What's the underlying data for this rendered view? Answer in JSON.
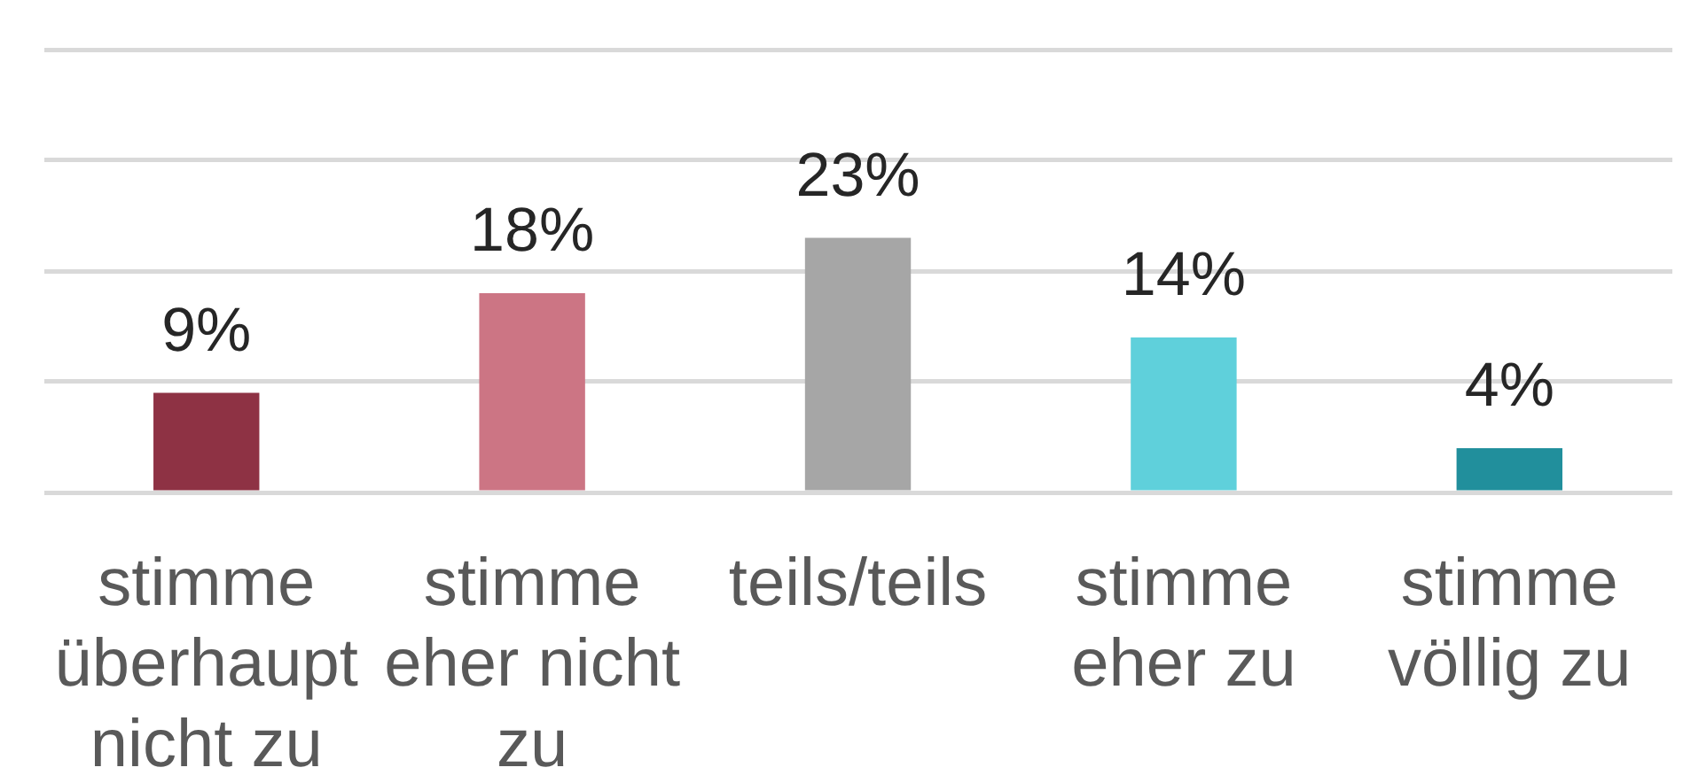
{
  "chart_data": {
    "type": "bar",
    "categories": [
      "stimme überhaupt nicht zu",
      "stimme eher nicht zu",
      "teils/teils",
      "stimme eher zu",
      "stimme völlig zu"
    ],
    "values": [
      9,
      18,
      23,
      14,
      4
    ],
    "colors": [
      "#8e3244",
      "#cc7584",
      "#a6a6a6",
      "#5fd0db",
      "#218f9c"
    ],
    "value_labels": [
      "9%",
      "18%",
      "23%",
      "14%",
      "4%"
    ],
    "ylim": [
      0,
      40
    ],
    "yticks": [
      {
        "value": 0,
        "label": null
      },
      {
        "value": 10,
        "label": null
      },
      {
        "value": 20,
        "label": null
      },
      {
        "value": 30,
        "label": null
      },
      {
        "value": 40,
        "label": null
      }
    ],
    "grid": "y",
    "tick_labels": "x"
  }
}
